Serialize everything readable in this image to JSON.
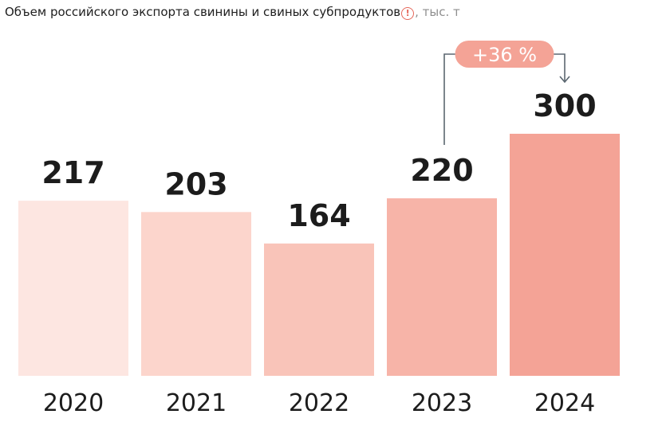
{
  "chart_data": {
    "type": "bar",
    "title": "Объем российского экспорта свинины и свиных субпродуктов",
    "title_note_icon": "exclamation-circle-icon",
    "unit": ", тыс. т",
    "categories": [
      "2020",
      "2021",
      "2022",
      "2023",
      "2024"
    ],
    "values": [
      217,
      203,
      164,
      220,
      300
    ],
    "colors": [
      "#fde6e1",
      "#fcd5cc",
      "#f9c4b9",
      "#f7b4a8",
      "#f4a396"
    ],
    "annotation": {
      "text": "+36 %",
      "from": "2023",
      "to": "2024",
      "color": "#f4a396"
    },
    "ylim": [
      0,
      300
    ],
    "grid": false
  }
}
